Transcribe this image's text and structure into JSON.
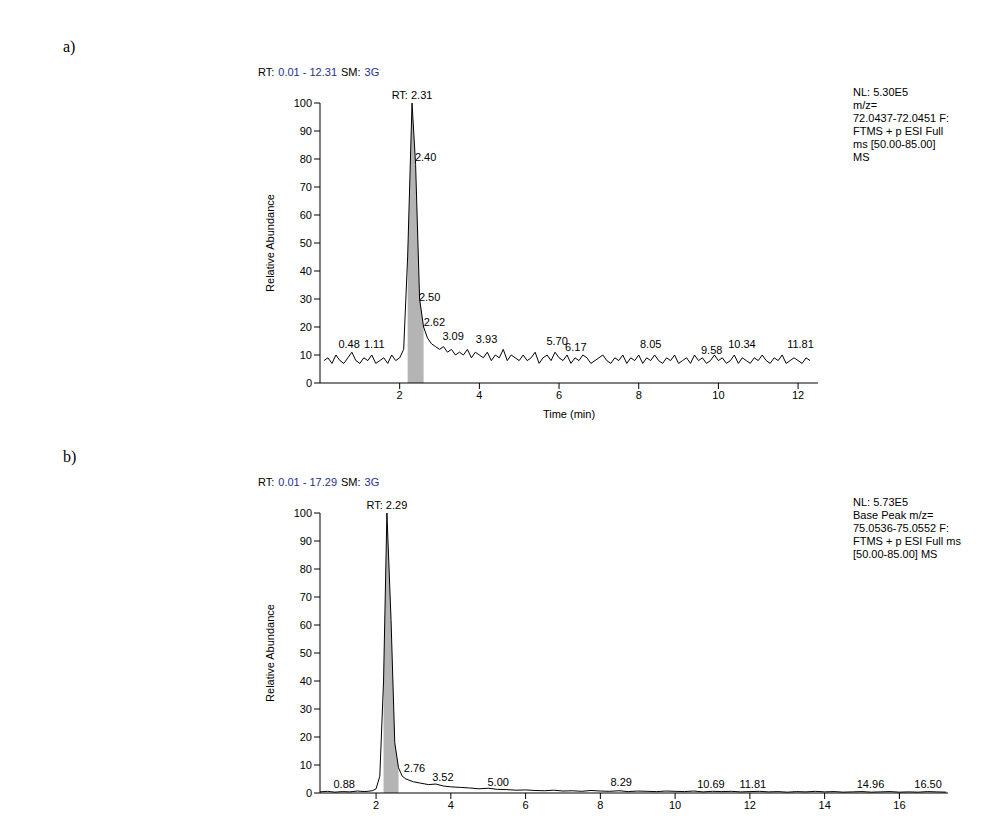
{
  "chart_data": [
    {
      "type": "line",
      "title": "a)",
      "header": [
        "RT:",
        "0.01 - 12.31",
        "SM:",
        "3G"
      ],
      "info": [
        "NL: 5.30E5",
        "m/z=",
        "72.0437-72.0451 F:",
        "FTMS + p ESI Full",
        "ms [50.00-85.00]",
        "MS"
      ],
      "x_label": "Time (min)",
      "y_label": "Relative Abundance",
      "xlim": [
        0,
        12.5
      ],
      "xticks": [
        2,
        4,
        6,
        8,
        10,
        12
      ],
      "ylim": [
        0,
        100
      ],
      "yticks": [
        0,
        10,
        20,
        30,
        40,
        50,
        60,
        70,
        80,
        90,
        100
      ],
      "integration": [
        2.2,
        2.62
      ],
      "x": [
        0.1,
        0.2,
        0.3,
        0.4,
        0.5,
        0.6,
        0.7,
        0.8,
        0.9,
        1.0,
        1.1,
        1.2,
        1.3,
        1.4,
        1.5,
        1.6,
        1.7,
        1.8,
        1.9,
        2.0,
        2.1,
        2.2,
        2.31,
        2.4,
        2.5,
        2.6,
        2.7,
        2.8,
        2.9,
        3.0,
        3.1,
        3.2,
        3.3,
        3.4,
        3.5,
        3.6,
        3.7,
        3.8,
        3.9,
        4.0,
        4.1,
        4.2,
        4.3,
        4.4,
        4.5,
        4.6,
        4.7,
        4.8,
        4.9,
        5.0,
        5.1,
        5.2,
        5.3,
        5.4,
        5.5,
        5.6,
        5.7,
        5.8,
        5.9,
        6.0,
        6.1,
        6.2,
        6.3,
        6.4,
        6.5,
        6.6,
        6.7,
        6.8,
        6.9,
        7.0,
        7.1,
        7.2,
        7.3,
        7.4,
        7.5,
        7.6,
        7.7,
        7.8,
        7.9,
        8.0,
        8.1,
        8.2,
        8.3,
        8.4,
        8.5,
        8.6,
        8.7,
        8.8,
        8.9,
        9.0,
        9.1,
        9.2,
        9.3,
        9.4,
        9.5,
        9.6,
        9.7,
        9.8,
        9.9,
        10.0,
        10.1,
        10.2,
        10.3,
        10.4,
        10.5,
        10.6,
        10.7,
        10.8,
        10.9,
        11.0,
        11.1,
        11.2,
        11.3,
        11.4,
        11.5,
        11.6,
        11.7,
        11.8,
        11.9,
        12.0,
        12.1,
        12.2,
        12.3
      ],
      "values": [
        8,
        9,
        7,
        10,
        8,
        7,
        9,
        11,
        8,
        7,
        9,
        8,
        10,
        7,
        8,
        9,
        7,
        10,
        8,
        9,
        12,
        45,
        100,
        78,
        30,
        20,
        16,
        14,
        13,
        12,
        13,
        11,
        12,
        10,
        11,
        10,
        12,
        9,
        11,
        10,
        9,
        11,
        8,
        10,
        9,
        12,
        8,
        10,
        9,
        8,
        10,
        8,
        9,
        11,
        7,
        9,
        10,
        8,
        11,
        9,
        8,
        10,
        7,
        9,
        8,
        10,
        9,
        7,
        8,
        9,
        10,
        8,
        7,
        9,
        8,
        10,
        7,
        9,
        8,
        10,
        7,
        9,
        8,
        10,
        8,
        7,
        9,
        8,
        10,
        7,
        8,
        9,
        7,
        10,
        8,
        9,
        7,
        8,
        10,
        8,
        9,
        7,
        8,
        10,
        7,
        9,
        8,
        7,
        9,
        8,
        10,
        8,
        7,
        9,
        8,
        10,
        7,
        8,
        9,
        8,
        7,
        9,
        8
      ],
      "annotations": [
        {
          "text": "RT: 2.31",
          "x": 2.31,
          "y": 100
        },
        {
          "text": "2.40",
          "x": 2.4,
          "y": 78
        },
        {
          "text": "2.50",
          "x": 2.5,
          "y": 28
        },
        {
          "text": "2.62",
          "x": 2.62,
          "y": 19
        },
        {
          "text": "3.09",
          "x": 3.09,
          "y": 14
        },
        {
          "text": "3.93",
          "x": 3.93,
          "y": 13
        },
        {
          "text": "5.70",
          "x": 5.7,
          "y": 12
        },
        {
          "text": "6.17",
          "x": 6.17,
          "y": 10
        },
        {
          "text": "8.05",
          "x": 8.05,
          "y": 11
        },
        {
          "text": "9.58",
          "x": 9.58,
          "y": 9
        },
        {
          "text": "10.34",
          "x": 10.34,
          "y": 11
        },
        {
          "text": "11.81",
          "x": 11.81,
          "y": 11
        },
        {
          "text": "0.48",
          "x": 0.48,
          "y": 11
        },
        {
          "text": "1.11",
          "x": 1.11,
          "y": 11
        }
      ]
    },
    {
      "type": "line",
      "title": "b)",
      "header": [
        "RT:",
        "0.01 - 17.29",
        "SM:",
        "3G"
      ],
      "info": [
        "NL: 5.73E5",
        "Base Peak m/z=",
        "75.0536-75.0552 F:",
        "FTMS + p ESI Full ms",
        "[50.00-85.00]  MS"
      ],
      "y_label": "Relative Abundance",
      "xlim": [
        0.5,
        17.3
      ],
      "xticks": [
        2,
        4,
        6,
        8,
        10,
        12,
        14,
        16
      ],
      "ylim": [
        0,
        100
      ],
      "yticks": [
        0,
        10,
        20,
        30,
        40,
        50,
        60,
        70,
        80,
        90,
        100
      ],
      "integration": [
        2.15,
        2.6
      ],
      "x": [
        0.5,
        0.7,
        0.9,
        1.1,
        1.3,
        1.5,
        1.7,
        1.9,
        2.0,
        2.1,
        2.2,
        2.29,
        2.4,
        2.5,
        2.6,
        2.7,
        2.8,
        3.0,
        3.2,
        3.4,
        3.6,
        3.8,
        4.0,
        4.25,
        4.5,
        4.75,
        5.0,
        5.25,
        5.5,
        5.75,
        6.0,
        6.25,
        6.5,
        6.75,
        7.0,
        7.25,
        7.5,
        7.75,
        8.0,
        8.25,
        8.5,
        8.75,
        9.0,
        9.25,
        9.5,
        9.75,
        10.0,
        10.25,
        10.5,
        10.75,
        11.0,
        11.25,
        11.5,
        11.75,
        12.0,
        12.25,
        12.5,
        12.75,
        13.0,
        13.25,
        13.5,
        13.75,
        14.0,
        14.25,
        14.5,
        14.75,
        15.0,
        15.25,
        15.5,
        15.75,
        16.0,
        16.25,
        16.5,
        16.75,
        17.0,
        17.25
      ],
      "values": [
        0.4,
        0.6,
        0.3,
        0.5,
        0.4,
        0.7,
        0.5,
        0.8,
        1.5,
        6,
        40,
        100,
        62,
        18,
        9,
        6,
        5,
        4,
        3.5,
        3,
        3.2,
        2.5,
        2.2,
        2.0,
        1.8,
        1.5,
        1.7,
        1.3,
        1.2,
        1.0,
        1.1,
        0.9,
        0.8,
        1.0,
        0.7,
        0.8,
        0.6,
        0.9,
        0.7,
        0.6,
        0.8,
        0.5,
        0.7,
        0.6,
        0.5,
        0.7,
        0.6,
        0.5,
        0.7,
        0.4,
        0.6,
        0.5,
        0.6,
        0.4,
        0.5,
        0.6,
        0.4,
        0.5,
        0.3,
        0.5,
        0.4,
        0.6,
        0.4,
        0.5,
        0.3,
        0.4,
        0.5,
        0.3,
        0.4,
        0.5,
        0.3,
        0.4,
        0.3,
        0.5,
        0.4,
        0.3
      ],
      "annotations": [
        {
          "text": "RT: 2.29",
          "x": 2.29,
          "y": 100
        },
        {
          "text": "2.76",
          "x": 2.76,
          "y": 6
        },
        {
          "text": "3.52",
          "x": 3.52,
          "y": 3
        },
        {
          "text": "5.00",
          "x": 5.0,
          "y": 1
        },
        {
          "text": "8.29",
          "x": 8.29,
          "y": 1
        },
        {
          "text": "10.69",
          "x": 10.69,
          "y": 0.5
        },
        {
          "text": "11.81",
          "x": 11.81,
          "y": 0.5
        },
        {
          "text": "14.96",
          "x": 14.96,
          "y": 0.5
        },
        {
          "text": "16.50",
          "x": 16.5,
          "y": 0.5
        },
        {
          "text": "0.88",
          "x": 0.88,
          "y": 0.5
        }
      ]
    }
  ]
}
